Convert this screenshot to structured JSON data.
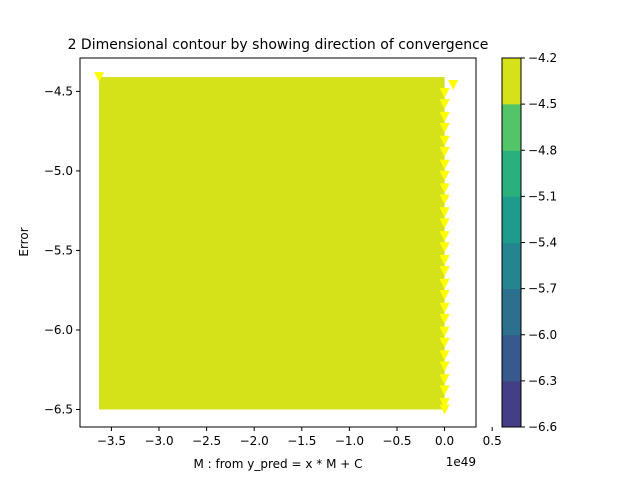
{
  "chart_data": {
    "type": "contour",
    "title": "2 Dimensional contour by showing direction of convergence",
    "xlabel": "M : from y_pred = x * M + C",
    "ylabel": "Error",
    "x_offset_label": "1e49",
    "xlim": [
      -3.83,
      0.33
    ],
    "ylim": [
      -6.61,
      -4.29
    ],
    "xticks": [
      -3.5,
      -3.0,
      -2.5,
      -2.0,
      -1.5,
      -1.0,
      -0.5,
      0.0,
      0.5
    ],
    "xtick_labels": [
      "−3.5",
      "−3.0",
      "−2.5",
      "−2.0",
      "−1.5",
      "−1.0",
      "−0.5",
      "0.0",
      "0.5"
    ],
    "yticks": [
      -4.5,
      -5.0,
      -5.5,
      -6.0,
      -6.5
    ],
    "ytick_labels": [
      "−4.5",
      "−5.0",
      "−5.5",
      "−6.0",
      "−6.5"
    ],
    "filled_region": {
      "x": [
        -3.63,
        0.0
      ],
      "y": [
        -6.5,
        -4.41
      ],
      "color": "#d5e21a"
    },
    "path_markers": {
      "marker": "triangle-down",
      "color": "#ffff00",
      "points": [
        [
          -3.63,
          -4.41
        ],
        [
          0.09,
          -4.46
        ],
        [
          0.0,
          -4.51
        ],
        [
          0.0,
          -4.58
        ],
        [
          0.0,
          -4.66
        ],
        [
          0.0,
          -4.73
        ],
        [
          0.0,
          -4.81
        ],
        [
          0.0,
          -4.88
        ],
        [
          0.0,
          -4.96
        ],
        [
          0.0,
          -5.03
        ],
        [
          0.0,
          -5.11
        ],
        [
          0.0,
          -5.18
        ],
        [
          0.0,
          -5.26
        ],
        [
          0.0,
          -5.33
        ],
        [
          0.0,
          -5.41
        ],
        [
          0.0,
          -5.48
        ],
        [
          0.0,
          -5.56
        ],
        [
          0.0,
          -5.63
        ],
        [
          0.0,
          -5.71
        ],
        [
          0.0,
          -5.78
        ],
        [
          0.0,
          -5.86
        ],
        [
          0.0,
          -5.93
        ],
        [
          0.0,
          -6.01
        ],
        [
          0.0,
          -6.08
        ],
        [
          0.0,
          -6.16
        ],
        [
          0.0,
          -6.23
        ],
        [
          0.0,
          -6.31
        ],
        [
          0.0,
          -6.38
        ],
        [
          0.0,
          -6.46
        ],
        [
          0.0,
          -6.5
        ]
      ]
    },
    "colorbar": {
      "levels": [
        -6.6,
        -6.3,
        -6.0,
        -5.7,
        -5.4,
        -5.1,
        -4.8,
        -4.5,
        -4.2
      ],
      "tick_labels": [
        "−6.6",
        "−6.3",
        "−6.0",
        "−5.7",
        "−5.4",
        "−5.1",
        "−4.8",
        "−4.5",
        "−4.2"
      ],
      "colors": [
        "#481a6c",
        "#433e85",
        "#38598c",
        "#2d708e",
        "#25858e",
        "#1e9b8a",
        "#2ab07f",
        "#52c569",
        "#86d549",
        "#d5e21a"
      ]
    }
  }
}
